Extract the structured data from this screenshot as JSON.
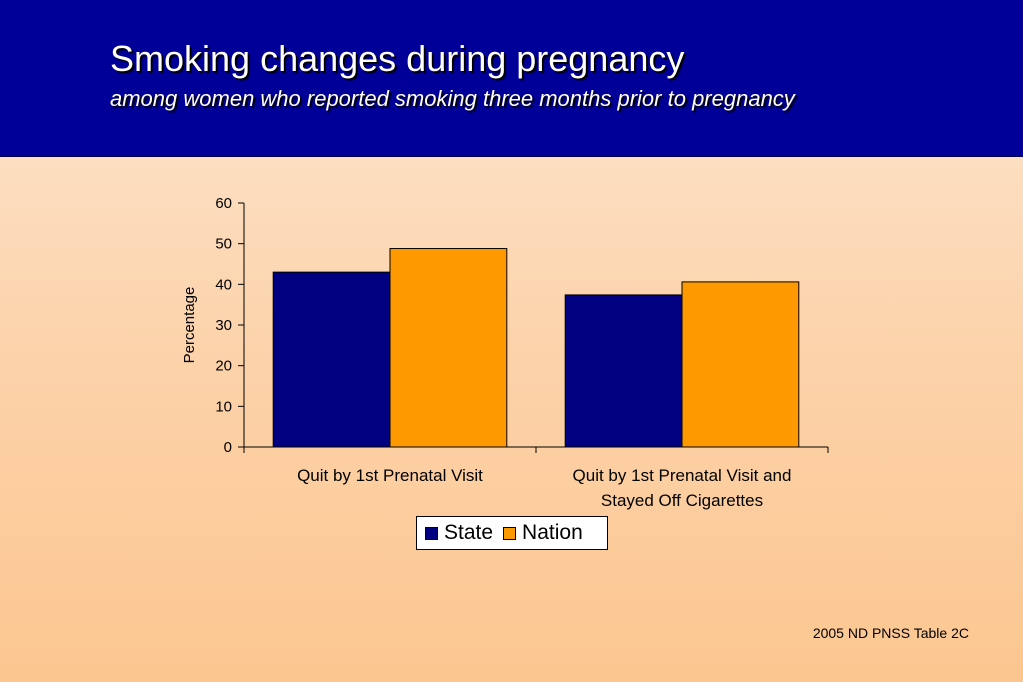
{
  "header": {
    "title": "Smoking changes during pregnancy",
    "subtitle": "among women who reported smoking three months prior to pregnancy"
  },
  "colors": {
    "state": "#000080",
    "nation": "#ff9900"
  },
  "chart_data": {
    "type": "bar",
    "categories": [
      [
        "Quit by 1st Prenatal Visit"
      ],
      [
        "Quit by 1st Prenatal Visit and",
        "Stayed Off Cigarettes"
      ]
    ],
    "series": [
      {
        "name": "State",
        "values": [
          43,
          37.4
        ]
      },
      {
        "name": "Nation",
        "values": [
          48.8,
          40.6
        ]
      }
    ],
    "ylabel": "Percentage",
    "ylim": [
      0,
      60
    ],
    "yticks": [
      0,
      10,
      20,
      30,
      40,
      50,
      60
    ],
    "grid": false,
    "legend_position": "bottom"
  },
  "legend": {
    "state_label": "State",
    "nation_label": "Nation"
  },
  "footer": {
    "source": "2005 ND PNSS Table 2C"
  }
}
